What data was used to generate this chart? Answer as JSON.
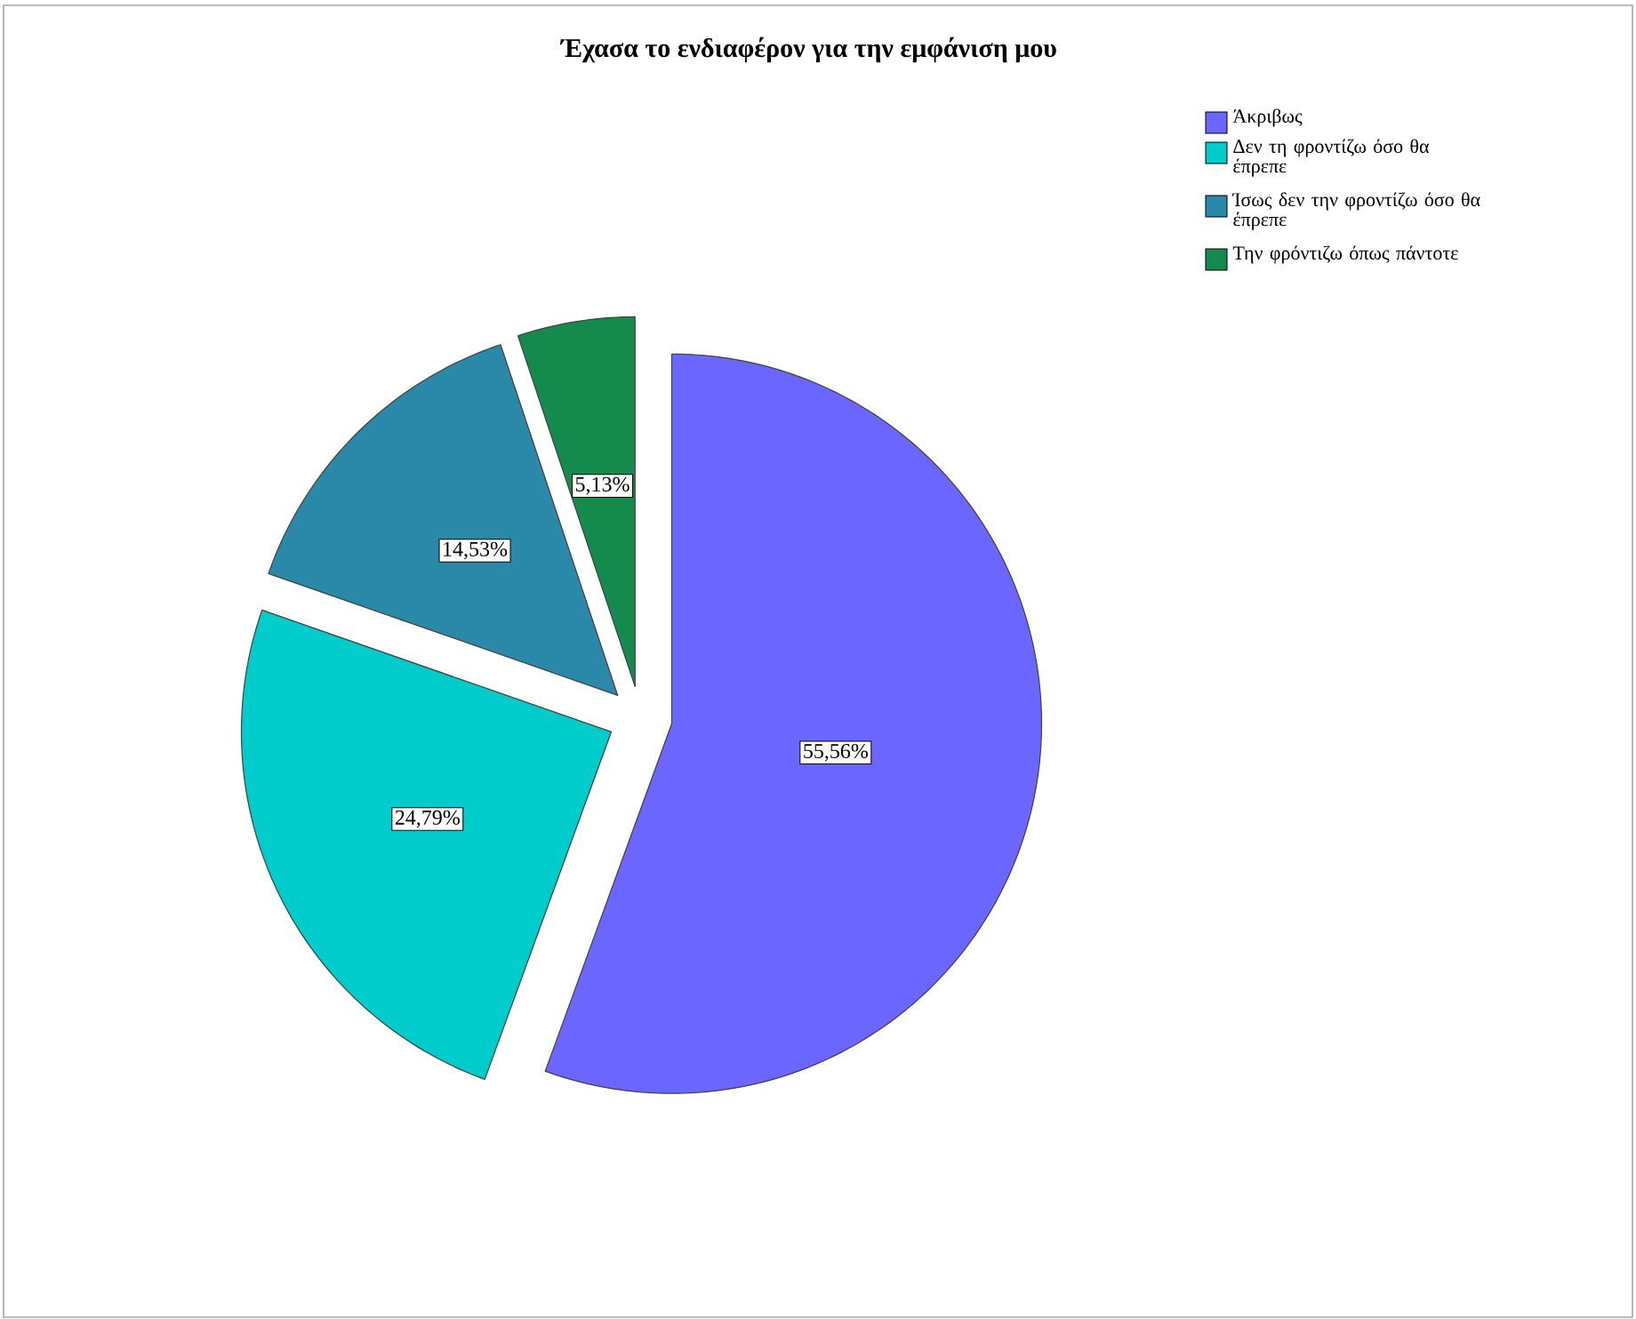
{
  "chart_data": {
    "type": "pie",
    "title": "Έχασα το ενδιαφέρον για την εμφάνιση μου",
    "categories": [
      "Άκριβως",
      "Δεν τη φροντίζω όσο θα έπρεπε",
      "Ίσως δεν την φροντίζω όσο θα έπρεπε",
      "Την φρόντιζω όπως πάντοτε"
    ],
    "values": [
      55.56,
      24.79,
      14.53,
      5.13
    ],
    "colors": [
      "#6b66ff",
      "#00cccc",
      "#2a88a8",
      "#148a4c"
    ],
    "value_labels": [
      "55,56%",
      "24,79%",
      "14,53%",
      "5,13%"
    ],
    "legend": "top right"
  }
}
